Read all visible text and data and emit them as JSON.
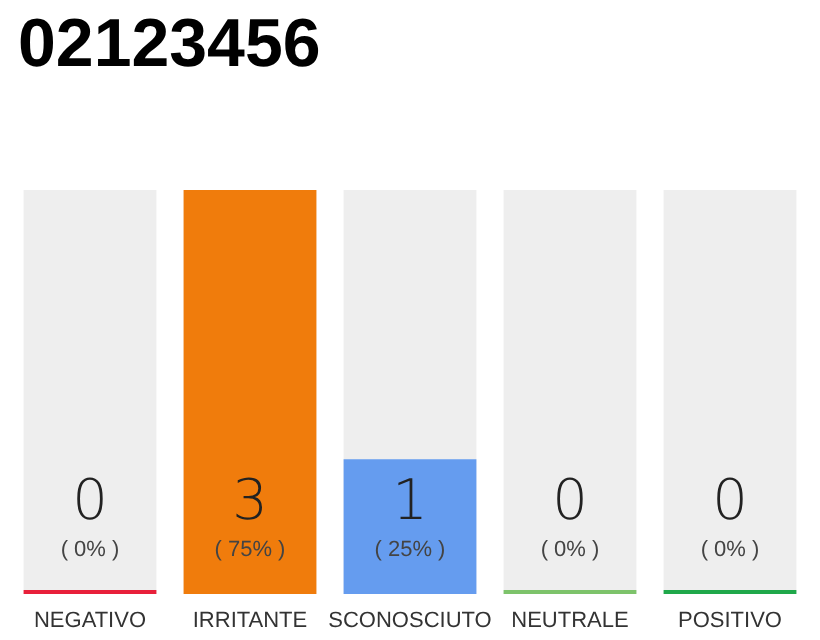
{
  "chart_data": {
    "type": "bar",
    "title": "02123456",
    "categories": [
      "NEGATIVO",
      "IRRITANTE",
      "SCONOSCIUTO",
      "NEUTRALE",
      "POSITIVO"
    ],
    "values": [
      0,
      3,
      1,
      0,
      0
    ],
    "colors": [
      "#e8203a",
      "#f07c0c",
      "#659cef",
      "#7dc36b",
      "#1fa84a"
    ],
    "ylim": [
      0,
      3
    ],
    "tick_labels": "x",
    "value_labels": [
      "0\n( 0% )",
      "3\n( 75% )",
      "1\n( 25% )",
      "0\n( 0% )",
      "0\n( 0% )"
    ]
  }
}
